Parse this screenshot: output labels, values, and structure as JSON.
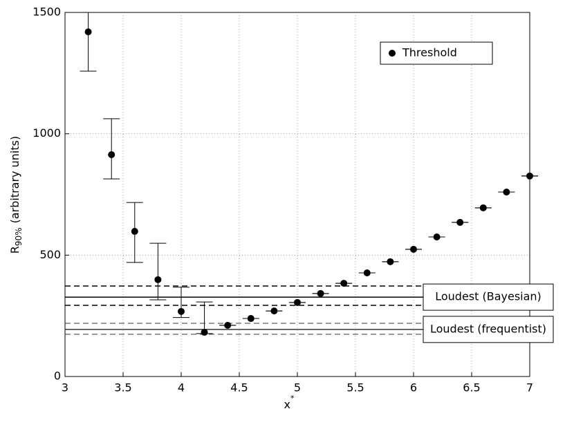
{
  "chart_data": {
    "type": "errorbar",
    "xlabel": "x",
    "xlabel_sup": "*",
    "ylabel": "R",
    "ylabel_sub": "90%",
    "ylabel_rest": "(arbitrary units)",
    "xlim": [
      3,
      7
    ],
    "xticks": [
      3,
      3.5,
      4,
      4.5,
      5,
      5.5,
      6,
      6.5,
      7
    ],
    "ylim": [
      0,
      1500
    ],
    "yticks": [
      0,
      500,
      1000,
      1500
    ],
    "grid": true,
    "legend": "upper right",
    "series": [
      {
        "name": "Threshold",
        "color": "#000000",
        "x": [
          3.2,
          3.4,
          3.6,
          3.8,
          4.0,
          4.2,
          4.4,
          4.6,
          4.8,
          5.0,
          5.2,
          5.4,
          5.6,
          5.8,
          6.0,
          6.2,
          6.4,
          6.6,
          6.8,
          7.0
        ],
        "values": [
          1420,
          914,
          598,
          399,
          268,
          182,
          211,
          239,
          270,
          305,
          342,
          384,
          427,
          473,
          524,
          575,
          635,
          695,
          760,
          826
        ],
        "error_low": [
          162,
          100,
          128,
          83,
          25,
          5,
          0,
          0,
          0,
          0,
          0,
          0,
          0,
          0,
          0,
          0,
          0,
          0,
          0,
          0
        ],
        "error_high": [
          162,
          148,
          119,
          150,
          100,
          125,
          0,
          0,
          0,
          0,
          0,
          0,
          0,
          0,
          0,
          0,
          0,
          0,
          0,
          0
        ]
      }
    ],
    "reference_lines": [
      {
        "name": "Loudest (Bayesian)",
        "value": 327,
        "lower": 293,
        "upper": 373,
        "color": "#000000"
      },
      {
        "name": "Loudest (frequentist)",
        "value": 194,
        "lower": 174,
        "upper": 219,
        "color": "#333333"
      }
    ]
  }
}
